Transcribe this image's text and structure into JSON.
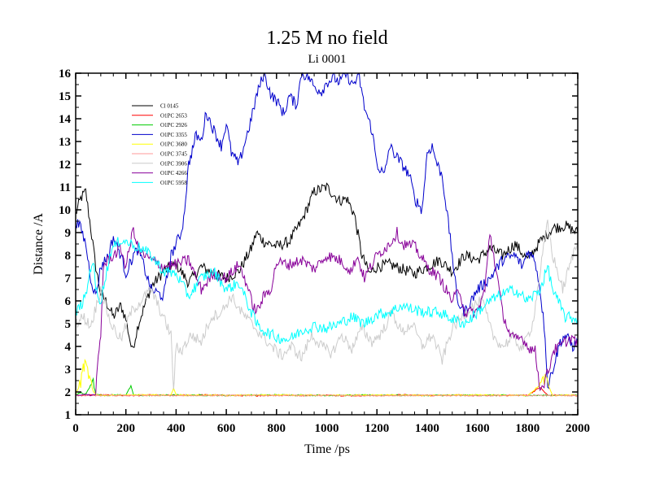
{
  "chart_data": {
    "type": "line",
    "title": "1.25 M no field",
    "subtitle": "Li 0001",
    "xlabel": "Time /ps",
    "ylabel": "Distance /A",
    "xlim": [
      0,
      2000
    ],
    "ylim": [
      1,
      16
    ],
    "xticks": [
      0,
      200,
      400,
      600,
      800,
      1000,
      1200,
      1400,
      1600,
      1800,
      2000
    ],
    "yticks": [
      1,
      2,
      3,
      4,
      5,
      6,
      7,
      8,
      9,
      10,
      11,
      12,
      13,
      14,
      15,
      16
    ],
    "legend_position": "top-left inside plot",
    "grid": false,
    "series": [
      {
        "name": "Cl 0145",
        "color": "#000000",
        "x": [
          0,
          20,
          40,
          60,
          80,
          100,
          120,
          150,
          180,
          200,
          225,
          250,
          300,
          350,
          400,
          450,
          500,
          550,
          600,
          650,
          700,
          720,
          750,
          800,
          850,
          900,
          950,
          1000,
          1050,
          1080,
          1110,
          1140,
          1170,
          1200,
          1250,
          1300,
          1350,
          1400,
          1450,
          1500,
          1550,
          1600,
          1650,
          1700,
          1750,
          1800,
          1850,
          1900,
          1950,
          2000
        ],
        "values": [
          9.8,
          10.5,
          10.8,
          9.2,
          7.5,
          6.3,
          6.0,
          5.3,
          5.8,
          5.2,
          3.8,
          5.0,
          6.6,
          7.3,
          7.6,
          6.8,
          7.5,
          7.2,
          7.0,
          7.3,
          8.3,
          9.0,
          8.6,
          8.4,
          8.6,
          9.5,
          10.8,
          11.0,
          10.4,
          10.5,
          9.8,
          8.0,
          7.2,
          7.5,
          7.6,
          7.4,
          7.2,
          7.5,
          7.8,
          7.3,
          8.0,
          7.8,
          8.3,
          8.0,
          8.5,
          7.8,
          8.6,
          9.2,
          9.3,
          9.0
        ]
      },
      {
        "name": "O1PC 2653",
        "color": "#ff0000",
        "x": [
          0,
          100,
          200,
          300,
          400,
          500,
          600,
          700,
          800,
          900,
          1000,
          1100,
          1200,
          1300,
          1400,
          1500,
          1600,
          1700,
          1800,
          1850,
          1880,
          1900,
          2000
        ],
        "values": [
          1.85,
          1.87,
          1.84,
          1.86,
          1.85,
          1.87,
          1.85,
          1.84,
          1.86,
          1.85,
          1.86,
          1.84,
          1.85,
          1.87,
          1.85,
          1.86,
          1.84,
          1.85,
          1.86,
          2.2,
          1.85,
          1.86,
          1.85
        ]
      },
      {
        "name": "O1PC 2926",
        "color": "#00cc00",
        "x": [
          0,
          20,
          40,
          70,
          80,
          100,
          200,
          220,
          230,
          250,
          400,
          600,
          800,
          1000,
          1200,
          1400,
          1600,
          1800,
          2000
        ],
        "values": [
          1.9,
          1.95,
          1.9,
          2.5,
          1.9,
          1.85,
          1.88,
          2.25,
          1.88,
          1.85,
          1.86,
          1.85,
          1.87,
          1.85,
          1.86,
          1.85,
          1.86,
          1.85,
          1.86
        ]
      },
      {
        "name": "O1PC 3355",
        "color": "#0000cc",
        "x": [
          0,
          20,
          40,
          60,
          80,
          100,
          130,
          150,
          180,
          200,
          230,
          250,
          300,
          350,
          380,
          400,
          420,
          430,
          450,
          480,
          500,
          520,
          550,
          580,
          600,
          620,
          650,
          680,
          700,
          720,
          750,
          780,
          800,
          830,
          850,
          880,
          900,
          930,
          950,
          980,
          1000,
          1030,
          1050,
          1080,
          1100,
          1130,
          1150,
          1180,
          1200,
          1230,
          1250,
          1280,
          1300,
          1330,
          1350,
          1380,
          1400,
          1420,
          1440,
          1460,
          1480,
          1500,
          1520,
          1550,
          1600,
          1650,
          1700,
          1750,
          1780,
          1800,
          1830,
          1850,
          1870,
          1880,
          1900,
          1930,
          1950,
          1980,
          2000
        ],
        "values": [
          9.5,
          9.2,
          8.5,
          7.0,
          6.2,
          7.5,
          8.0,
          8.8,
          8.0,
          7.2,
          8.0,
          8.3,
          6.5,
          6.2,
          8.0,
          8.5,
          9.0,
          9.6,
          12.0,
          13.3,
          13.0,
          14.3,
          13.5,
          12.8,
          13.8,
          12.5,
          12.0,
          13.2,
          14.0,
          15.0,
          16.0,
          15.0,
          14.8,
          14.2,
          15.0,
          14.6,
          16.0,
          15.8,
          15.4,
          15.2,
          15.6,
          15.8,
          15.6,
          16.0,
          15.5,
          15.8,
          14.5,
          13.5,
          12.0,
          11.5,
          12.8,
          12.3,
          12.0,
          11.5,
          10.5,
          10.0,
          12.5,
          12.8,
          12.0,
          11.5,
          9.8,
          8.0,
          6.0,
          5.5,
          6.5,
          7.0,
          7.8,
          8.0,
          7.5,
          8.2,
          7.8,
          6.5,
          4.5,
          2.2,
          3.0,
          4.2,
          4.5,
          4.0,
          4.2
        ]
      },
      {
        "name": "O1PC 3680",
        "color": "#ffff00",
        "x": [
          0,
          20,
          30,
          40,
          55,
          70,
          80,
          100,
          200,
          380,
          390,
          400,
          600,
          800,
          1000,
          1200,
          1400,
          1600,
          1800,
          1850,
          1870,
          1900,
          2000
        ],
        "values": [
          1.9,
          2.4,
          3.1,
          3.2,
          2.6,
          2.0,
          1.9,
          1.85,
          1.87,
          1.86,
          2.2,
          1.86,
          1.85,
          1.87,
          1.85,
          1.86,
          1.85,
          1.86,
          1.85,
          2.3,
          2.6,
          1.85,
          1.86
        ]
      },
      {
        "name": "O1PC 3745",
        "color": "#ff9999",
        "x": [
          0,
          200,
          400,
          600,
          800,
          1000,
          1200,
          1400,
          1600,
          1800,
          2000
        ],
        "values": [
          1.84,
          1.85,
          1.84,
          1.85,
          1.84,
          1.85,
          1.84,
          1.85,
          1.84,
          1.85,
          1.84
        ]
      },
      {
        "name": "O1PC 3906",
        "color": "#cccccc",
        "x": [
          0,
          30,
          60,
          100,
          140,
          180,
          220,
          260,
          300,
          340,
          380,
          390,
          400,
          420,
          460,
          500,
          540,
          580,
          620,
          660,
          700,
          740,
          780,
          820,
          860,
          900,
          940,
          980,
          1020,
          1060,
          1100,
          1140,
          1180,
          1220,
          1260,
          1300,
          1340,
          1380,
          1420,
          1460,
          1500,
          1540,
          1580,
          1620,
          1660,
          1700,
          1740,
          1780,
          1820,
          1860,
          1880,
          1900,
          1940,
          1980,
          2000
        ],
        "values": [
          5.0,
          5.3,
          4.9,
          6.5,
          5.0,
          4.3,
          5.5,
          6.0,
          6.5,
          5.5,
          4.5,
          2.1,
          4.0,
          3.8,
          4.5,
          4.2,
          5.3,
          5.5,
          6.2,
          5.5,
          5.0,
          4.5,
          4.0,
          3.6,
          4.0,
          3.5,
          4.5,
          4.0,
          3.7,
          4.5,
          3.9,
          4.8,
          4.2,
          4.6,
          5.5,
          4.6,
          5.0,
          4.0,
          4.5,
          3.4,
          4.8,
          5.3,
          5.8,
          6.0,
          4.5,
          4.0,
          4.4,
          3.9,
          5.0,
          8.0,
          9.4,
          8.0,
          6.5,
          8.0,
          8.6
        ]
      },
      {
        "name": "O1PC 4266",
        "color": "#880099",
        "x": [
          0,
          20,
          40,
          60,
          80,
          90,
          100,
          110,
          130,
          150,
          180,
          200,
          230,
          250,
          300,
          350,
          400,
          450,
          500,
          550,
          600,
          650,
          680,
          700,
          720,
          750,
          780,
          800,
          850,
          900,
          950,
          1000,
          1050,
          1100,
          1120,
          1150,
          1200,
          1250,
          1280,
          1300,
          1350,
          1400,
          1450,
          1500,
          1530,
          1550,
          1600,
          1630,
          1650,
          1680,
          1700,
          1730,
          1750,
          1780,
          1800,
          1830,
          1850,
          1870,
          1890,
          1900,
          1930,
          1950,
          1980,
          2000
        ],
        "values": [
          1.9,
          1.85,
          1.9,
          1.85,
          1.9,
          3.5,
          4.5,
          7.5,
          7.8,
          8.0,
          8.3,
          7.5,
          9.2,
          8.2,
          7.8,
          7.5,
          7.6,
          7.8,
          6.5,
          7.2,
          7.0,
          7.6,
          6.8,
          6.0,
          5.5,
          6.2,
          6.6,
          7.7,
          7.6,
          7.8,
          7.4,
          8.0,
          7.8,
          7.3,
          8.0,
          7.0,
          8.0,
          8.5,
          9.0,
          8.5,
          8.4,
          7.5,
          7.0,
          6.0,
          6.5,
          5.5,
          5.5,
          6.5,
          9.0,
          7.0,
          5.5,
          4.5,
          4.3,
          4.4,
          4.0,
          3.8,
          2.1,
          2.5,
          3.2,
          3.8,
          4.0,
          4.2,
          4.4,
          4.0
        ]
      },
      {
        "name": "O1PC 5958",
        "color": "#00ffff",
        "x": [
          0,
          20,
          40,
          60,
          70,
          80,
          100,
          140,
          180,
          220,
          260,
          300,
          350,
          400,
          450,
          500,
          550,
          600,
          650,
          700,
          720,
          750,
          800,
          850,
          900,
          950,
          1000,
          1050,
          1100,
          1150,
          1200,
          1250,
          1300,
          1350,
          1400,
          1450,
          1500,
          1550,
          1600,
          1650,
          1700,
          1750,
          1800,
          1850,
          1880,
          1900,
          1950,
          2000
        ],
        "values": [
          5.5,
          5.8,
          6.2,
          7.5,
          7.8,
          6.5,
          6.0,
          8.2,
          8.7,
          8.5,
          8.3,
          8.0,
          7.3,
          7.2,
          6.2,
          7.0,
          7.3,
          6.5,
          6.8,
          5.5,
          5.0,
          4.7,
          4.4,
          4.3,
          4.7,
          4.9,
          4.8,
          5.0,
          5.3,
          5.0,
          5.4,
          5.5,
          5.8,
          5.6,
          5.5,
          5.5,
          5.2,
          5.0,
          5.5,
          6.0,
          6.3,
          6.5,
          6.0,
          6.5,
          7.5,
          6.5,
          5.3,
          5.2
        ]
      }
    ]
  }
}
